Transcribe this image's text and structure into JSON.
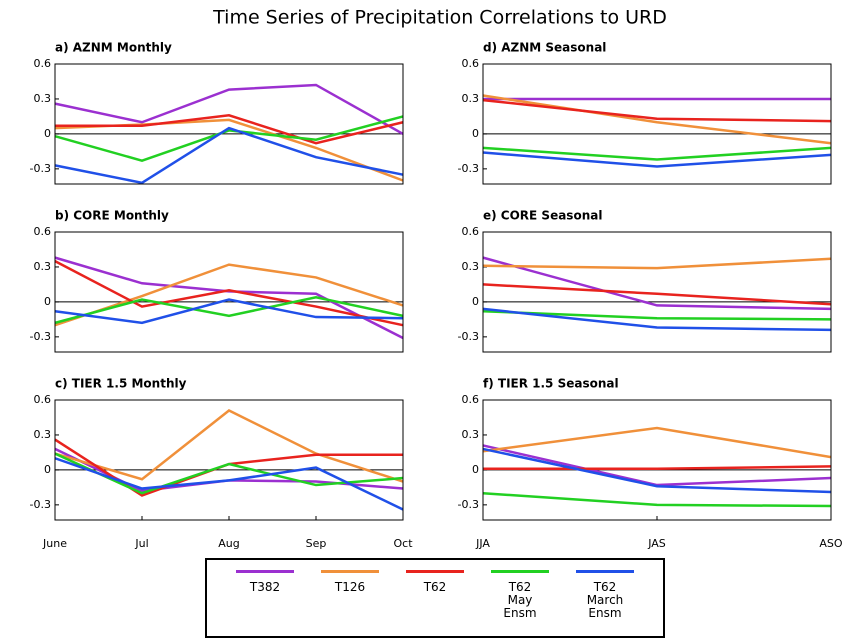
{
  "title": "Time Series of Precipitation Correlations to URD",
  "chart_data": [
    {
      "type": "line",
      "title": "a) AZNM Monthly",
      "ylim": [
        -0.43,
        0.6
      ],
      "yticks": [
        0.6,
        0.3,
        0,
        -0.3
      ],
      "series": [
        {
          "name": "T382",
          "color": "#9b30d0",
          "values": [
            0.26,
            0.1,
            0.38,
            0.42,
            0.0
          ]
        },
        {
          "name": "T126",
          "color": "#f0903a",
          "values": [
            0.05,
            0.08,
            0.12,
            -0.12,
            -0.4
          ]
        },
        {
          "name": "T62",
          "color": "#e8231e",
          "values": [
            0.07,
            0.07,
            0.16,
            -0.08,
            0.1
          ]
        },
        {
          "name": "T62 May Ensm",
          "color": "#22d022",
          "values": [
            -0.02,
            -0.23,
            0.03,
            -0.05,
            0.15
          ]
        },
        {
          "name": "T62 March Ensm",
          "color": "#2050e8",
          "values": [
            -0.27,
            -0.42,
            0.05,
            -0.2,
            -0.35
          ]
        }
      ]
    },
    {
      "type": "line",
      "title": "b) CORE Monthly",
      "ylim": [
        -0.43,
        0.6
      ],
      "yticks": [
        0.6,
        0.3,
        0,
        -0.3
      ],
      "series": [
        {
          "name": "T382",
          "color": "#9b30d0",
          "values": [
            0.38,
            0.16,
            0.09,
            0.07,
            -0.31
          ]
        },
        {
          "name": "T126",
          "color": "#f0903a",
          "values": [
            -0.2,
            0.05,
            0.32,
            0.21,
            -0.03
          ]
        },
        {
          "name": "T62",
          "color": "#e8231e",
          "values": [
            0.35,
            -0.04,
            0.1,
            -0.04,
            -0.2
          ]
        },
        {
          "name": "T62 May Ensm",
          "color": "#22d022",
          "values": [
            -0.18,
            0.02,
            -0.12,
            0.04,
            -0.12
          ]
        },
        {
          "name": "T62 March Ensm",
          "color": "#2050e8",
          "values": [
            -0.08,
            -0.18,
            0.02,
            -0.13,
            -0.14
          ]
        }
      ]
    },
    {
      "type": "line",
      "title": "c) TIER 1.5 Monthly",
      "categories": [
        "June",
        "Jul",
        "Aug",
        "Sep",
        "Oct"
      ],
      "ylim": [
        -0.43,
        0.6
      ],
      "yticks": [
        0.6,
        0.3,
        0,
        -0.3
      ],
      "series": [
        {
          "name": "T382",
          "color": "#9b30d0",
          "values": [
            0.18,
            -0.18,
            -0.09,
            -0.1,
            -0.16
          ]
        },
        {
          "name": "T126",
          "color": "#f0903a",
          "values": [
            0.14,
            -0.08,
            0.51,
            0.14,
            -0.1
          ]
        },
        {
          "name": "T62",
          "color": "#e8231e",
          "values": [
            0.26,
            -0.22,
            0.05,
            0.13,
            0.13
          ]
        },
        {
          "name": "T62 May Ensm",
          "color": "#22d022",
          "values": [
            0.14,
            -0.2,
            0.05,
            -0.13,
            -0.07
          ]
        },
        {
          "name": "T62 March Ensm",
          "color": "#2050e8",
          "values": [
            0.1,
            -0.16,
            -0.09,
            0.02,
            -0.34
          ]
        }
      ]
    },
    {
      "type": "line",
      "title": "d) AZNM Seasonal",
      "ylim": [
        -0.43,
        0.6
      ],
      "yticks": [
        0.6,
        0.3,
        0,
        -0.3
      ],
      "series": [
        {
          "name": "T382",
          "color": "#9b30d0",
          "values": [
            0.3,
            0.3,
            0.3
          ]
        },
        {
          "name": "T126",
          "color": "#f0903a",
          "values": [
            0.33,
            0.1,
            -0.08
          ]
        },
        {
          "name": "T62",
          "color": "#e8231e",
          "values": [
            0.29,
            0.13,
            0.11
          ]
        },
        {
          "name": "T62 May Ensm",
          "color": "#22d022",
          "values": [
            -0.12,
            -0.22,
            -0.12
          ]
        },
        {
          "name": "T62 March Ensm",
          "color": "#2050e8",
          "values": [
            -0.16,
            -0.28,
            -0.18
          ]
        }
      ]
    },
    {
      "type": "line",
      "title": "e) CORE Seasonal",
      "ylim": [
        -0.43,
        0.6
      ],
      "yticks": [
        0.6,
        0.3,
        0,
        -0.3
      ],
      "series": [
        {
          "name": "T382",
          "color": "#9b30d0",
          "values": [
            0.38,
            -0.03,
            -0.06
          ]
        },
        {
          "name": "T126",
          "color": "#f0903a",
          "values": [
            0.31,
            0.29,
            0.37
          ]
        },
        {
          "name": "T62",
          "color": "#e8231e",
          "values": [
            0.15,
            0.07,
            -0.02
          ]
        },
        {
          "name": "T62 May Ensm",
          "color": "#22d022",
          "values": [
            -0.08,
            -0.14,
            -0.15
          ]
        },
        {
          "name": "T62 March Ensm",
          "color": "#2050e8",
          "values": [
            -0.06,
            -0.22,
            -0.24
          ]
        }
      ]
    },
    {
      "type": "line",
      "title": "f) TIER 1.5 Seasonal",
      "categories": [
        "JJA",
        "JAS",
        "ASO"
      ],
      "ylim": [
        -0.43,
        0.6
      ],
      "yticks": [
        0.6,
        0.3,
        0,
        -0.3
      ],
      "series": [
        {
          "name": "T382",
          "color": "#9b30d0",
          "values": [
            0.21,
            -0.13,
            -0.07
          ]
        },
        {
          "name": "T126",
          "color": "#f0903a",
          "values": [
            0.16,
            0.36,
            0.11
          ]
        },
        {
          "name": "T62",
          "color": "#e8231e",
          "values": [
            0.01,
            0.01,
            0.03
          ]
        },
        {
          "name": "T62 May Ensm",
          "color": "#22d022",
          "values": [
            -0.2,
            -0.3,
            -0.31
          ]
        },
        {
          "name": "T62 March Ensm",
          "color": "#2050e8",
          "values": [
            0.18,
            -0.14,
            -0.19
          ]
        }
      ]
    }
  ]
}
